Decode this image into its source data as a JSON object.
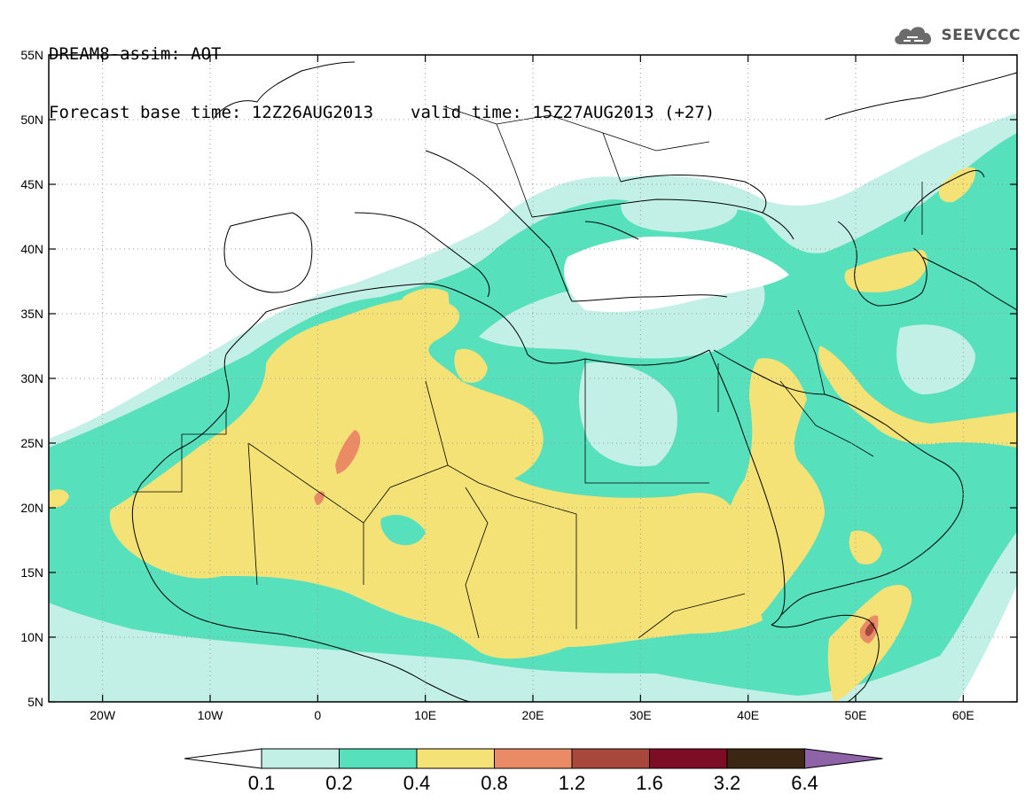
{
  "title": {
    "line1": "DREAM8-assim: AOT",
    "base_time": "Forecast base time: 12Z26AUG2013",
    "valid_time": "valid time: 15Z27AUG2013 (+27)"
  },
  "logo": {
    "text": "SEEVCCC",
    "icon": "cloud-icon"
  },
  "map": {
    "lon_range": [
      -25,
      65
    ],
    "lat_range": [
      5,
      55
    ],
    "lat_ticks": [
      {
        "value": 55,
        "label": "55N"
      },
      {
        "value": 50,
        "label": "50N"
      },
      {
        "value": 45,
        "label": "45N"
      },
      {
        "value": 40,
        "label": "40N"
      },
      {
        "value": 35,
        "label": "35N"
      },
      {
        "value": 30,
        "label": "30N"
      },
      {
        "value": 25,
        "label": "25N"
      },
      {
        "value": 20,
        "label": "20N"
      },
      {
        "value": 15,
        "label": "15N"
      },
      {
        "value": 10,
        "label": "10N"
      },
      {
        "value": 5,
        "label": "5N"
      }
    ],
    "lon_ticks": [
      {
        "value": -20,
        "label": "20W"
      },
      {
        "value": -10,
        "label": "10W"
      },
      {
        "value": 0,
        "label": "0"
      },
      {
        "value": 10,
        "label": "10E"
      },
      {
        "value": 20,
        "label": "20E"
      },
      {
        "value": 30,
        "label": "30E"
      },
      {
        "value": 40,
        "label": "40E"
      },
      {
        "value": 50,
        "label": "50E"
      },
      {
        "value": 60,
        "label": "60E"
      }
    ]
  },
  "colorbar": {
    "colors": [
      "#c2efe6",
      "#57e0bc",
      "#f5e277",
      "#eb8b66",
      "#a8483c",
      "#7c0d24",
      "#3b2613"
    ],
    "over_color": "#8f63a8",
    "under_color": "#ffffff",
    "labels": [
      "0.1",
      "0.2",
      "0.4",
      "0.8",
      "1.2",
      "1.6",
      "3.2",
      "6.4"
    ]
  }
}
